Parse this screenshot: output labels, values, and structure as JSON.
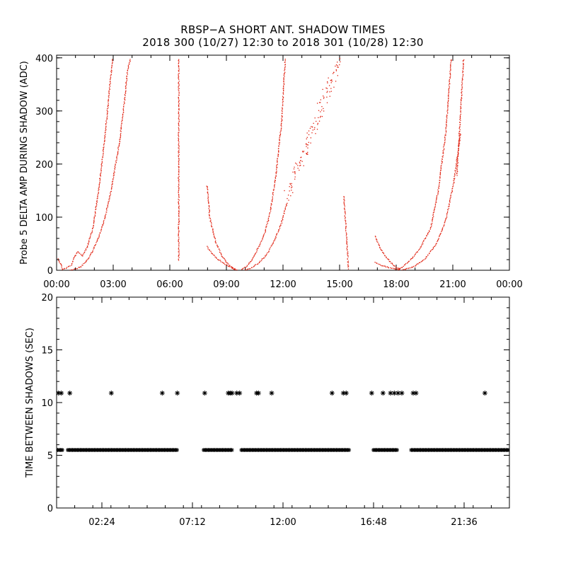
{
  "title": "RBSP−A SHORT ANT. SHADOW TIMES",
  "subtitle": "2018 300 (10/27) 12:30 to 2018 301 (10/28) 12:30",
  "colors": {
    "top_marks": "#e0200f",
    "bottom_marks": "#000000",
    "axes": "#000000",
    "background": "#ffffff"
  },
  "chart_data": [
    {
      "type": "scatter",
      "title": "",
      "ylabel": "Probe 5 DELTA AMP DURING SHADOW (ADC)",
      "xlabel": "",
      "xlim": [
        0,
        24
      ],
      "ylim": [
        0,
        405
      ],
      "x_unit": "hours",
      "xticks": [
        {
          "value": 0,
          "label": "00:00"
        },
        {
          "value": 3,
          "label": "03:00"
        },
        {
          "value": 6,
          "label": "06:00"
        },
        {
          "value": 9,
          "label": "09:00"
        },
        {
          "value": 12,
          "label": "12:00"
        },
        {
          "value": 15,
          "label": "15:00"
        },
        {
          "value": 18,
          "label": "18:00"
        },
        {
          "value": 21,
          "label": "21:00"
        },
        {
          "value": 24,
          "label": "00:00"
        }
      ],
      "yticks": [
        {
          "value": 0,
          "label": "0"
        },
        {
          "value": 100,
          "label": "100"
        },
        {
          "value": 200,
          "label": "200"
        },
        {
          "value": 300,
          "label": "300"
        },
        {
          "value": 400,
          "label": "400"
        }
      ],
      "grid": false,
      "marker": "dot",
      "segments": [
        {
          "x": [
            0.05,
            0.2,
            0.3
          ],
          "y": [
            22,
            12,
            2
          ]
        },
        {
          "x": [
            0.3,
            0.75,
            0.9,
            1.1,
            1.35,
            1.6,
            1.9,
            2.2,
            2.5,
            2.75,
            2.95
          ],
          "y": [
            2,
            10,
            25,
            35,
            28,
            45,
            80,
            150,
            240,
            330,
            400
          ]
        },
        {
          "x": [
            0.7,
            1.0,
            1.3,
            1.6,
            1.9,
            2.2,
            2.5,
            2.8,
            3.0,
            3.3,
            3.55,
            3.75,
            3.9
          ],
          "y": [
            1,
            4,
            8,
            20,
            38,
            62,
            95,
            140,
            180,
            240,
            310,
            380,
            400
          ]
        },
        {
          "x": [
            6.45,
            6.45
          ],
          "y": [
            20,
            400
          ]
        },
        {
          "x": [
            7.95,
            8.1,
            8.4,
            8.7,
            9.0,
            9.3,
            9.5
          ],
          "y": [
            160,
            100,
            55,
            30,
            15,
            5,
            2
          ]
        },
        {
          "x": [
            7.95,
            8.2,
            8.5,
            8.8,
            9.1,
            9.4,
            9.6
          ],
          "y": [
            45,
            32,
            22,
            15,
            8,
            3,
            1
          ]
        },
        {
          "x": [
            9.8,
            10.1,
            10.4,
            10.7,
            11.0,
            11.3,
            11.6,
            11.9,
            12.1
          ],
          "y": [
            2,
            10,
            25,
            45,
            70,
            110,
            180,
            280,
            400
          ]
        },
        {
          "x": [
            9.9,
            10.3,
            10.7,
            11.1,
            11.5,
            11.9,
            12.2
          ],
          "y": [
            1,
            5,
            15,
            30,
            55,
            90,
            130
          ]
        },
        {
          "x": [
            12.2,
            15.0
          ],
          "y": [
            140,
            400
          ]
        },
        {
          "x": [
            15.2,
            15.45
          ],
          "y": [
            140,
            2
          ]
        },
        {
          "x": [
            16.85,
            17.1,
            17.4,
            17.7,
            18.0,
            18.2
          ],
          "y": [
            65,
            45,
            28,
            15,
            6,
            2
          ]
        },
        {
          "x": [
            16.85,
            17.2,
            17.6,
            17.9,
            18.2
          ],
          "y": [
            15,
            10,
            6,
            3,
            1
          ]
        },
        {
          "x": [
            18.1,
            18.6,
            19.2,
            19.8,
            20.2,
            20.6,
            20.9
          ],
          "y": [
            2,
            15,
            40,
            80,
            150,
            260,
            400
          ]
        },
        {
          "x": [
            18.3,
            18.9,
            19.5,
            20.1,
            20.6,
            21.0,
            21.4
          ],
          "y": [
            1,
            8,
            22,
            50,
            95,
            160,
            260
          ]
        },
        {
          "x": [
            21.2,
            21.55
          ],
          "y": [
            180,
            400
          ]
        }
      ]
    },
    {
      "type": "scatter",
      "title": "",
      "ylabel": "TIME BETWEEN SHADOWS (SEC)",
      "xlabel": "",
      "xlim": [
        0,
        24
      ],
      "ylim": [
        0,
        20
      ],
      "x_unit": "hours",
      "xticks": [
        {
          "value": 2.4,
          "label": "02:24"
        },
        {
          "value": 7.2,
          "label": "07:12"
        },
        {
          "value": 12.0,
          "label": "12:00"
        },
        {
          "value": 16.8,
          "label": "16:48"
        },
        {
          "value": 21.6,
          "label": "21:36"
        }
      ],
      "yticks": [
        {
          "value": 0,
          "label": "0"
        },
        {
          "value": 5,
          "label": "5"
        },
        {
          "value": 10,
          "label": "10"
        },
        {
          "value": 15,
          "label": "15"
        },
        {
          "value": 20,
          "label": "20"
        }
      ],
      "grid": false,
      "marker": "asterisk",
      "bands": [
        {
          "x": [
            0.05,
            0.35
          ],
          "y": [
            5.2,
            5.8
          ]
        },
        {
          "x": [
            0.6,
            6.4
          ],
          "y": [
            5.3,
            5.7
          ]
        },
        {
          "x": [
            7.8,
            9.3
          ],
          "y": [
            5.3,
            5.7
          ]
        },
        {
          "x": [
            9.8,
            15.5
          ],
          "y": [
            5.3,
            5.7
          ]
        },
        {
          "x": [
            16.8,
            18.1
          ],
          "y": [
            5.3,
            5.7
          ]
        },
        {
          "x": [
            18.8,
            24.0
          ],
          "y": [
            5.2,
            5.8
          ]
        }
      ],
      "points": {
        "x": [
          0.1,
          0.25,
          0.7,
          2.9,
          5.6,
          6.4,
          7.85,
          9.1,
          9.2,
          9.3,
          9.55,
          9.7,
          10.6,
          10.7,
          11.4,
          14.6,
          15.2,
          15.35,
          16.7,
          17.3,
          17.7,
          17.9,
          18.1,
          18.3,
          18.9,
          19.05,
          22.7
        ],
        "y": [
          10.9,
          10.9,
          10.9,
          10.9,
          10.9,
          10.9,
          10.9,
          10.9,
          10.9,
          10.9,
          10.9,
          10.9,
          10.9,
          10.9,
          10.9,
          10.9,
          10.9,
          10.9,
          10.9,
          10.9,
          10.9,
          10.9,
          10.9,
          10.9,
          10.9,
          10.9,
          10.9
        ]
      }
    }
  ]
}
